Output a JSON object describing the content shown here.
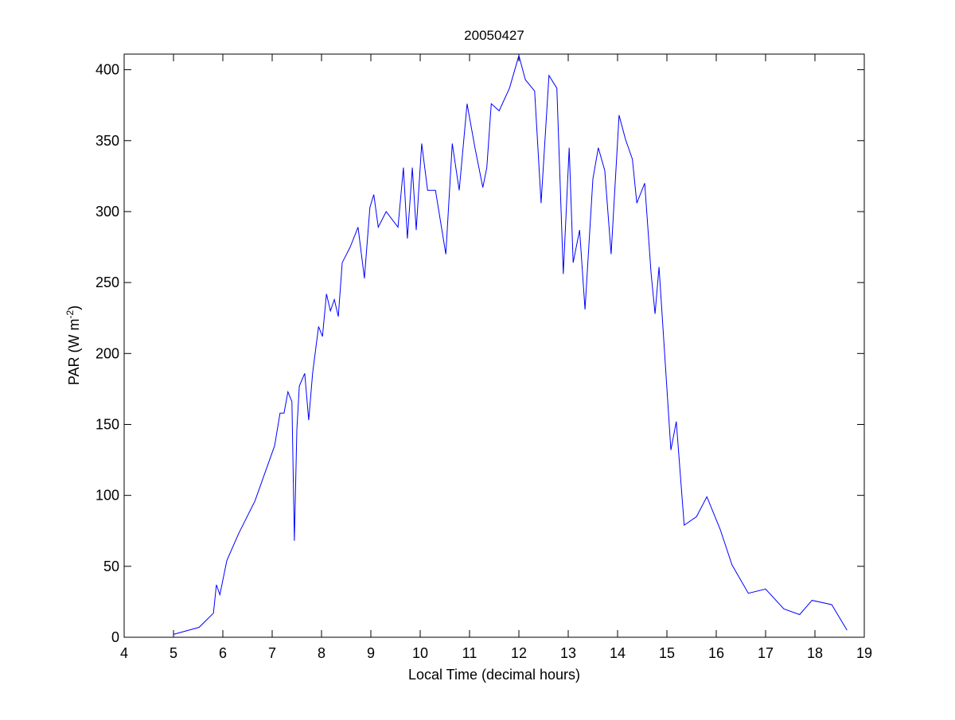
{
  "chart_data": {
    "type": "line",
    "title": "20050427",
    "xlabel": "Local Time (decimal hours)",
    "ylabel": "PAR (W m^-2)",
    "ylabel_parts": {
      "base": "PAR (W m",
      "sup": "-2",
      "close": ")"
    },
    "xlim": [
      4,
      19
    ],
    "ylim": [
      0,
      411
    ],
    "xticks": [
      4,
      5,
      6,
      7,
      8,
      9,
      10,
      11,
      12,
      13,
      14,
      15,
      16,
      17,
      18,
      19
    ],
    "yticks": [
      0,
      50,
      100,
      150,
      200,
      250,
      300,
      350,
      400
    ],
    "grid": false,
    "line_color": "#0000ff",
    "series": [
      {
        "name": "PAR",
        "x": [
          5.0,
          5.52,
          5.81,
          5.87,
          5.94,
          6.08,
          6.32,
          6.65,
          7.05,
          7.16,
          7.24,
          7.32,
          7.4,
          7.45,
          7.5,
          7.55,
          7.66,
          7.74,
          7.82,
          7.94,
          8.02,
          8.1,
          8.18,
          8.26,
          8.34,
          8.42,
          8.58,
          8.74,
          8.87,
          8.98,
          9.06,
          9.15,
          9.31,
          9.55,
          9.66,
          9.74,
          9.84,
          9.92,
          10.03,
          10.15,
          10.31,
          10.52,
          10.65,
          10.79,
          10.95,
          11.11,
          11.27,
          11.35,
          11.44,
          11.6,
          11.81,
          12.0,
          12.13,
          12.32,
          12.45,
          12.61,
          12.77,
          12.9,
          13.02,
          13.1,
          13.23,
          13.34,
          13.5,
          13.61,
          13.74,
          13.87,
          14.03,
          14.16,
          14.3,
          14.39,
          14.55,
          14.68,
          14.76,
          14.84,
          14.95,
          15.08,
          15.19,
          15.35,
          15.6,
          15.81,
          16.08,
          16.32,
          16.65,
          17.0,
          17.37,
          17.69,
          17.94,
          18.34,
          18.65
        ],
        "y": [
          2,
          7,
          17,
          37,
          30,
          54,
          73,
          96,
          135,
          158,
          158,
          173,
          166,
          68,
          146,
          177,
          186,
          153,
          186,
          219,
          212,
          242,
          230,
          238,
          226,
          264,
          275,
          289,
          253,
          303,
          312,
          289,
          300,
          289,
          331,
          281,
          331,
          287,
          348,
          315,
          315,
          270,
          348,
          315,
          376,
          345,
          317,
          331,
          376,
          371,
          387,
          410,
          393,
          385,
          306,
          396,
          387,
          256,
          345,
          264,
          287,
          231,
          323,
          345,
          329,
          270,
          368,
          351,
          337,
          306,
          320,
          256,
          228,
          261,
          202,
          132,
          152,
          79,
          85,
          99,
          76,
          51,
          31,
          34,
          20,
          16,
          26,
          23,
          5
        ]
      }
    ]
  }
}
